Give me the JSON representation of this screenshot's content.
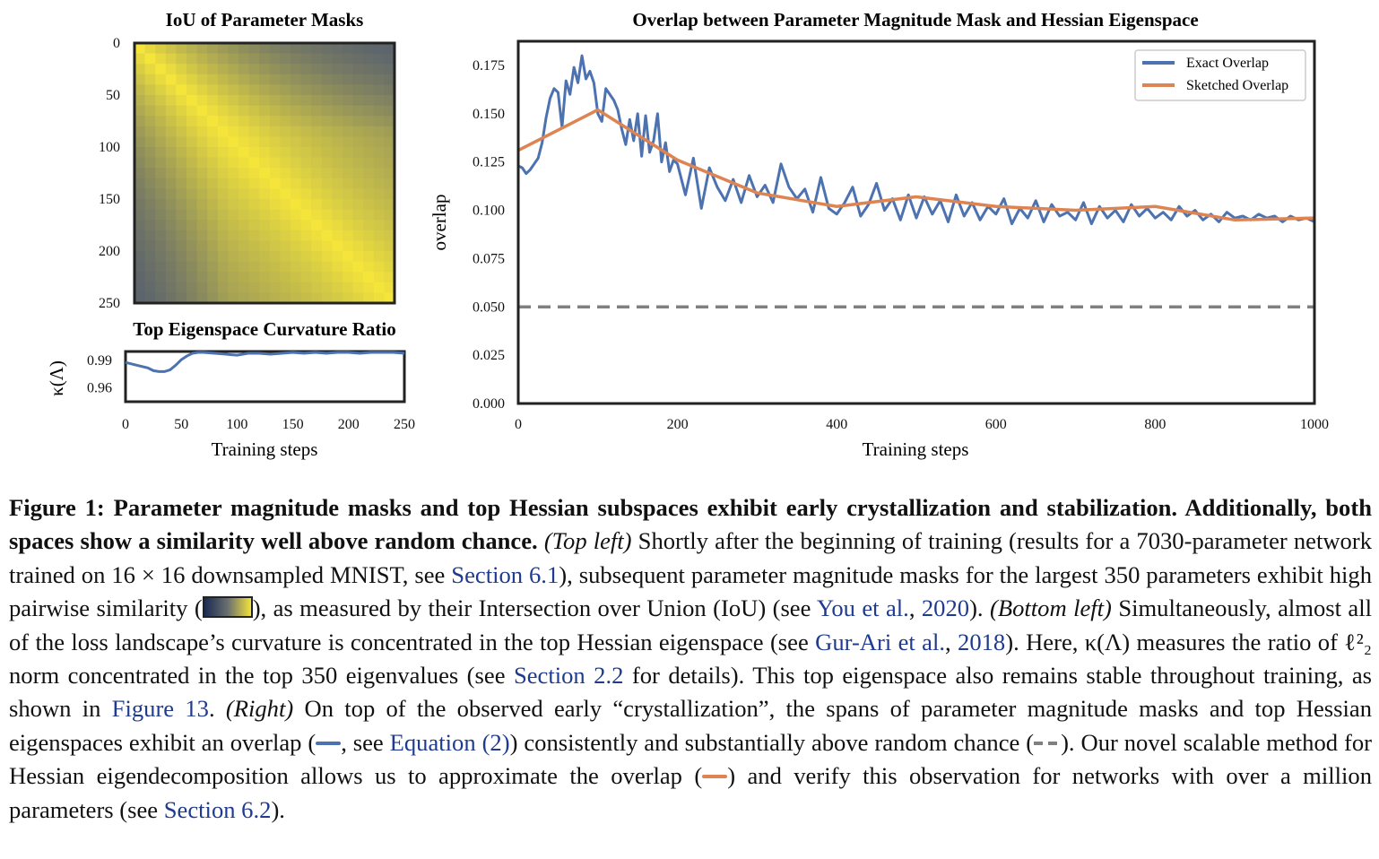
{
  "colors": {
    "exact": "#4c72b0",
    "sketched": "#dd8452",
    "random": "#808080",
    "cmap_low": "#475273",
    "cmap_high": "#f5e53b"
  },
  "chart_data": [
    {
      "type": "heatmap",
      "title": "IoU of Parameter Masks",
      "yticks": [
        0,
        50,
        100,
        150,
        200,
        250
      ],
      "xlim": [
        0,
        250
      ],
      "ylim": [
        0,
        250
      ],
      "description_of_values": "symmetric similarity matrix, 1 on diagonal, decaying away from diagonal, high similarity after ~step 50"
    },
    {
      "type": "line",
      "title": "Top Eigenspace Curvature Ratio",
      "xlabel": "Training steps",
      "ylabel": "κ(Λ)",
      "xticks": [
        0,
        50,
        100,
        150,
        200,
        250
      ],
      "yticks": [
        0.99,
        0.96
      ],
      "xlim": [
        0,
        250
      ],
      "ylim": [
        0.945,
        1.0
      ],
      "series": [
        {
          "x": [
            0,
            10,
            20,
            25,
            30,
            35,
            40,
            45,
            50,
            55,
            60,
            65,
            70,
            80,
            90,
            100,
            110,
            120,
            130,
            140,
            150,
            160,
            170,
            180,
            190,
            200,
            210,
            220,
            230,
            240,
            250
          ],
          "values": [
            0.988,
            0.985,
            0.982,
            0.979,
            0.978,
            0.978,
            0.98,
            0.985,
            0.991,
            0.995,
            0.998,
            0.999,
            0.999,
            0.998,
            0.997,
            0.996,
            0.998,
            0.998,
            0.997,
            0.998,
            0.999,
            0.998,
            0.999,
            0.998,
            0.999,
            0.999,
            0.998,
            0.999,
            0.999,
            0.999,
            0.998
          ]
        }
      ]
    },
    {
      "type": "line",
      "title": "Overlap between Parameter Magnitude Mask and Hessian Eigenspace",
      "xlabel": "Training steps",
      "ylabel": "overlap",
      "xticks": [
        0,
        200,
        400,
        600,
        800,
        1000
      ],
      "yticks": [
        0.0,
        0.025,
        0.05,
        0.075,
        0.1,
        0.125,
        0.15,
        0.175
      ],
      "xlim": [
        0,
        1000
      ],
      "ylim": [
        0,
        0.1875
      ],
      "legend": "top-right",
      "series": [
        {
          "name": "Exact Overlap",
          "x": [
            0,
            5,
            10,
            15,
            20,
            25,
            30,
            35,
            40,
            45,
            50,
            55,
            60,
            65,
            70,
            75,
            80,
            85,
            90,
            95,
            100,
            105,
            110,
            115,
            120,
            125,
            130,
            135,
            140,
            145,
            150,
            155,
            160,
            165,
            170,
            175,
            180,
            185,
            190,
            195,
            200,
            210,
            220,
            230,
            240,
            250,
            260,
            270,
            280,
            290,
            300,
            310,
            320,
            330,
            340,
            350,
            360,
            370,
            380,
            390,
            400,
            410,
            420,
            430,
            440,
            450,
            460,
            470,
            480,
            490,
            500,
            510,
            520,
            530,
            540,
            550,
            560,
            570,
            580,
            590,
            600,
            610,
            620,
            630,
            640,
            650,
            660,
            670,
            680,
            690,
            700,
            710,
            720,
            730,
            740,
            750,
            760,
            770,
            780,
            790,
            800,
            810,
            820,
            830,
            840,
            850,
            860,
            870,
            880,
            890,
            900,
            910,
            920,
            930,
            940,
            950,
            960,
            970,
            980,
            990,
            1000
          ],
          "values": [
            0.123,
            0.122,
            0.119,
            0.121,
            0.124,
            0.127,
            0.135,
            0.148,
            0.158,
            0.163,
            0.161,
            0.143,
            0.167,
            0.16,
            0.174,
            0.166,
            0.18,
            0.168,
            0.172,
            0.166,
            0.15,
            0.146,
            0.163,
            0.16,
            0.157,
            0.152,
            0.142,
            0.134,
            0.147,
            0.136,
            0.15,
            0.128,
            0.149,
            0.13,
            0.136,
            0.15,
            0.125,
            0.135,
            0.12,
            0.126,
            0.124,
            0.108,
            0.127,
            0.101,
            0.122,
            0.112,
            0.105,
            0.116,
            0.104,
            0.118,
            0.107,
            0.113,
            0.104,
            0.124,
            0.112,
            0.106,
            0.111,
            0.099,
            0.117,
            0.101,
            0.098,
            0.104,
            0.112,
            0.097,
            0.103,
            0.114,
            0.1,
            0.106,
            0.095,
            0.108,
            0.096,
            0.107,
            0.098,
            0.105,
            0.094,
            0.108,
            0.097,
            0.104,
            0.095,
            0.102,
            0.098,
            0.106,
            0.093,
            0.101,
            0.096,
            0.105,
            0.094,
            0.103,
            0.097,
            0.099,
            0.095,
            0.104,
            0.093,
            0.102,
            0.096,
            0.1,
            0.094,
            0.103,
            0.097,
            0.101,
            0.096,
            0.099,
            0.095,
            0.102,
            0.097,
            0.1,
            0.095,
            0.098,
            0.094,
            0.099,
            0.096,
            0.097,
            0.095,
            0.098,
            0.096,
            0.097,
            0.094,
            0.097,
            0.095,
            0.096,
            0.094
          ]
        },
        {
          "name": "Sketched Overlap",
          "x": [
            0,
            100,
            200,
            300,
            400,
            500,
            600,
            700,
            800,
            900,
            1000
          ],
          "values": [
            0.131,
            0.152,
            0.126,
            0.109,
            0.102,
            0.107,
            0.102,
            0.1,
            0.102,
            0.095,
            0.096
          ]
        },
        {
          "name": "random",
          "x": [
            0,
            1000
          ],
          "values": [
            0.05,
            0.05
          ]
        }
      ]
    }
  ],
  "caption": {
    "bold": "Figure 1: Parameter magnitude masks and top Hessian subspaces exhibit early crystallization and stabilization. Additionally, both spaces show a similarity well above random chance.",
    "top_left_label": "(Top left)",
    "p1": " Shortly after the beginning of training (results for a 7030-parameter network trained on 16 × 16 downsampled MNIST, see ",
    "ref_s61": "Section 6.1",
    "p2": "), subsequent parameter magnitude masks for the largest 350 parameters exhibit high pairwise similarity (",
    "p3": "), as measured by their Intersection over Union (IoU) (see ",
    "ref_you": "You et al.",
    "p3b": ", ",
    "ref_you_year": "2020",
    "p4": "). ",
    "bottom_left_label": "(Bottom left)",
    "p5": " Simultaneously, almost all of the loss landscape’s curvature is concentrated in the top Hessian eigenspace (see ",
    "ref_gur": "Gur-Ari et al.",
    "p5b": ", ",
    "ref_gur_year": "2018",
    "p6": "). Here, κ(Λ) measures the ratio of ℓ²₂ norm concentrated in the top 350 eigenvalues (see ",
    "ref_s22": "Section 2.2",
    "p7": " for details). This top eigenspace also remains stable throughout training, as shown in ",
    "ref_fig13": "Figure 13",
    "p8": ". ",
    "right_label": "(Right)",
    "p9": " On top of the observed early “crystallization”, the spans of parameter magnitude masks and top Hessian eigenspaces exhibit an ",
    "overlap_word1": "overlap",
    "p10": " (",
    "p11": ", see ",
    "ref_eq2": "Equation (2)",
    "p12": ") consistently and substantially above random chance (",
    "p13": "). Our novel scalable method for Hessian eigendecomposition allows us to approximate the ",
    "overlap_word2": "overlap",
    "p14": " (",
    "p15": ") and verify this observation for networks with over a million parameters (see ",
    "ref_s62": "Section 6.2",
    "p16": ")."
  }
}
